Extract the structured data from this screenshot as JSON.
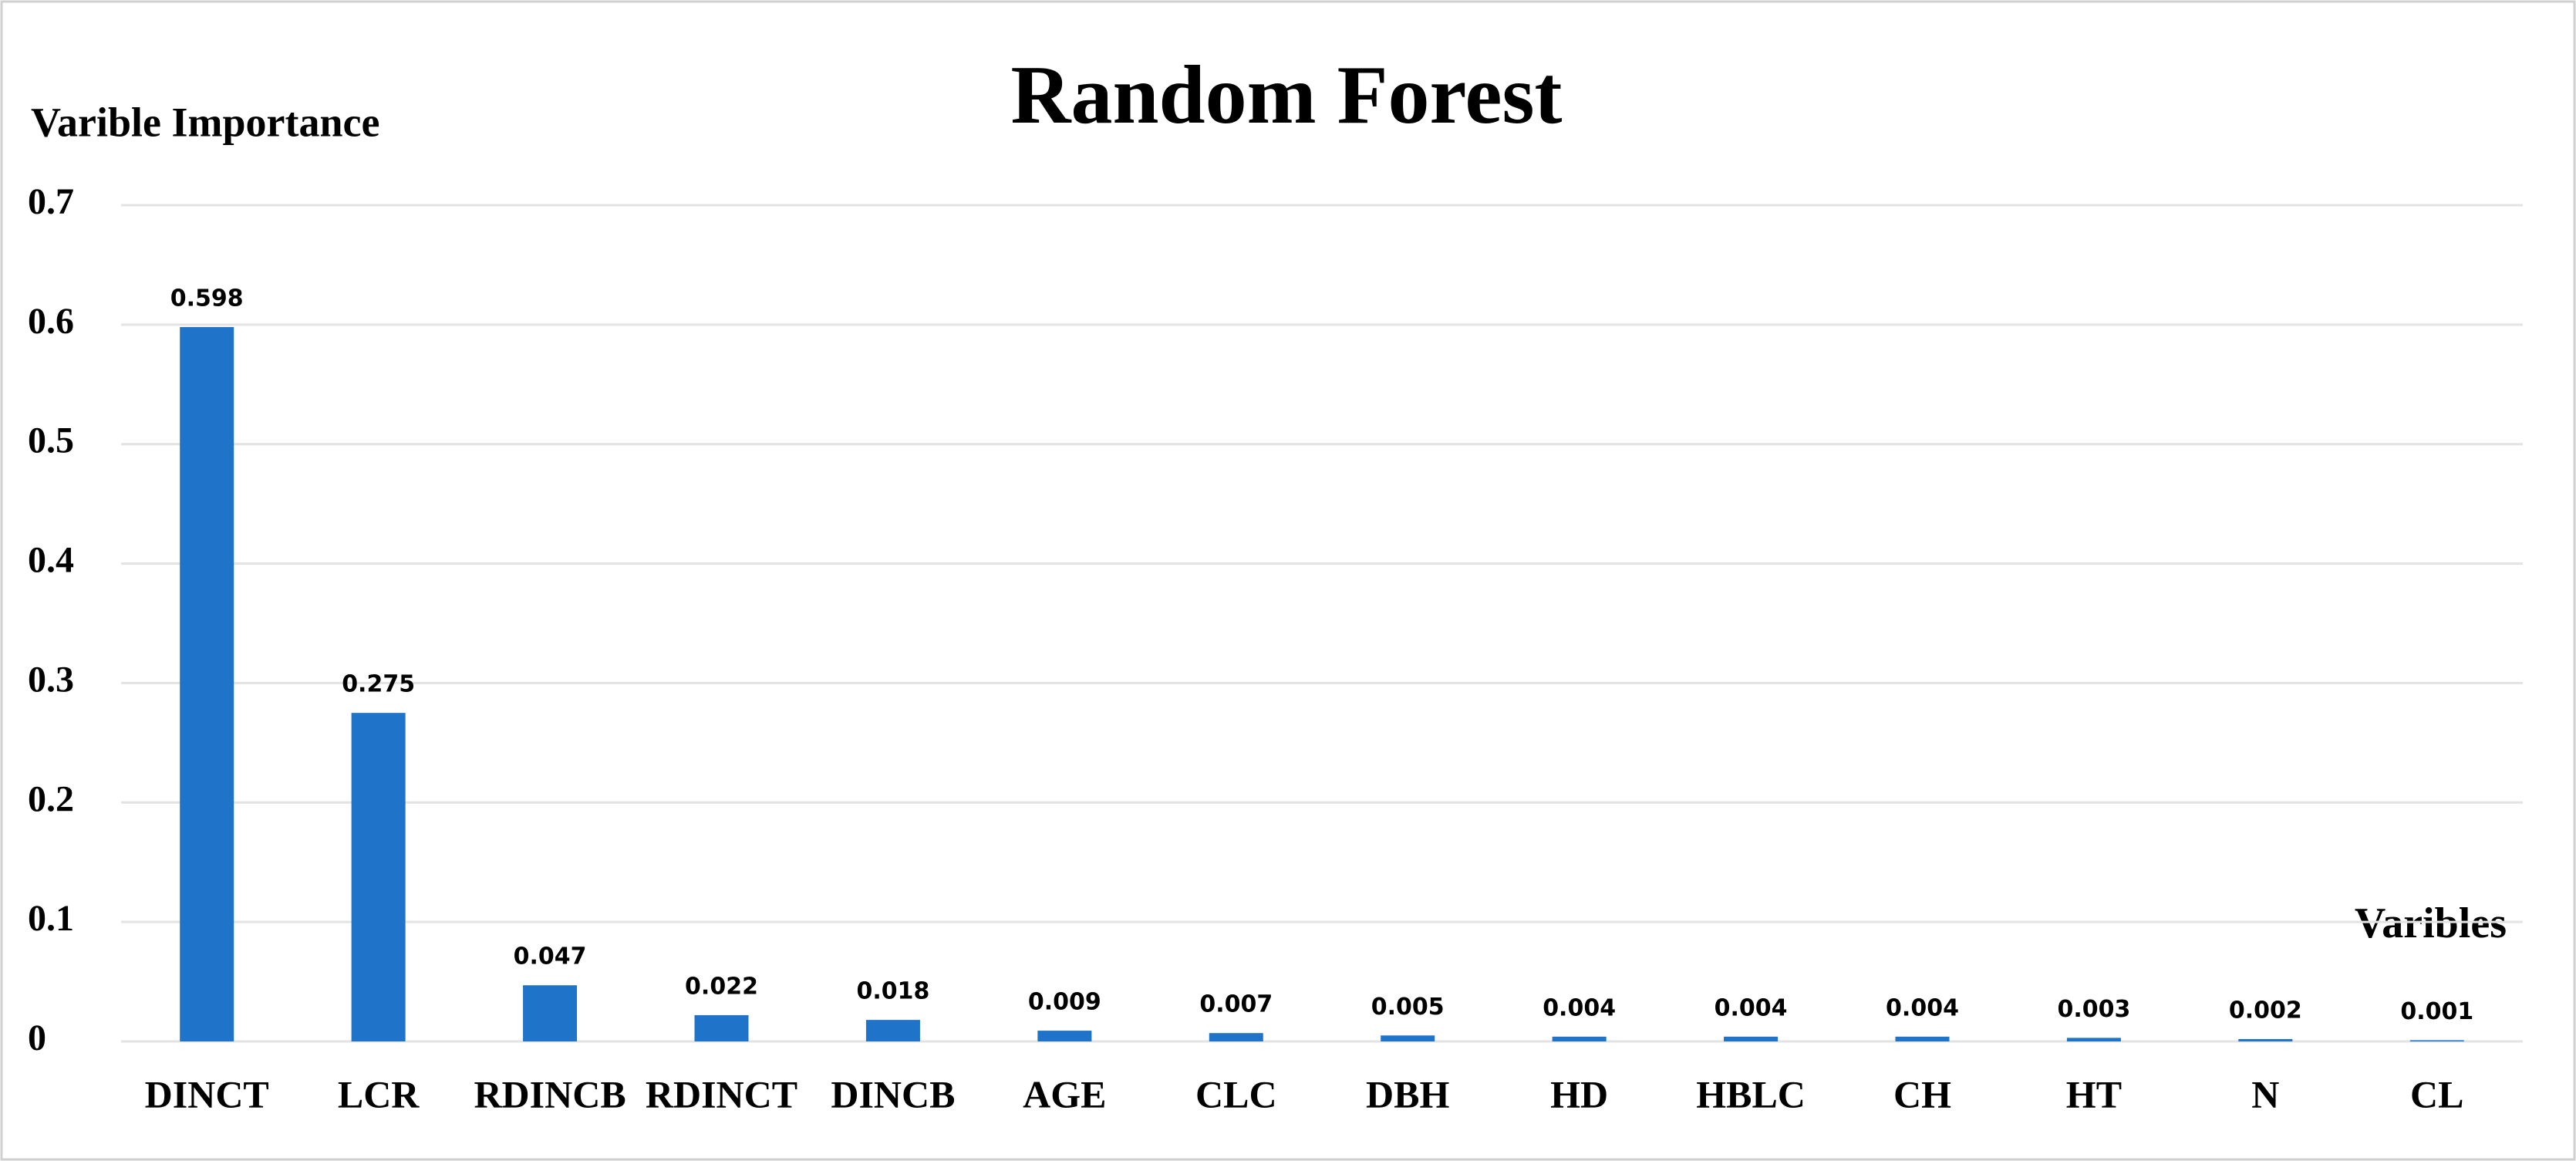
{
  "chart_data": {
    "type": "bar",
    "title": "Random Forest",
    "y_label": "Varible Importance",
    "x_label": "Varibles",
    "categories": [
      "DINCT",
      "LCR",
      "RDINCB",
      "RDINCT",
      "DINCB",
      "AGE",
      "CLC",
      "DBH",
      "HD",
      "HBLC",
      "CH",
      "HT",
      "N",
      "CL"
    ],
    "values": [
      0.598,
      0.275,
      0.047,
      0.022,
      0.018,
      0.009,
      0.007,
      0.005,
      0.004,
      0.004,
      0.004,
      0.003,
      0.002,
      0.001
    ],
    "color": "#1f74c9",
    "ylim": [
      0,
      0.7
    ],
    "yticks": [
      0,
      0.1,
      0.2,
      0.3,
      0.4,
      0.5,
      0.6,
      0.7
    ],
    "grid": true
  }
}
